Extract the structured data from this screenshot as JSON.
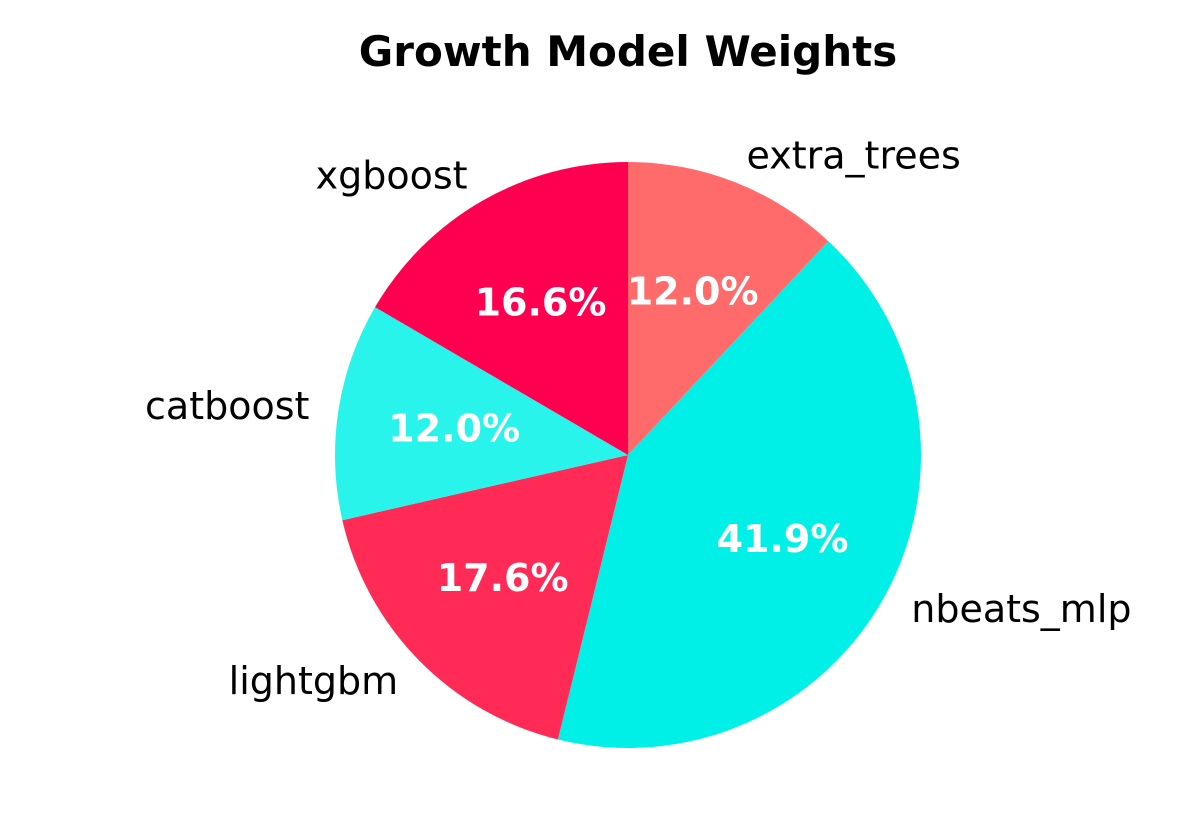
{
  "chart_data": {
    "type": "pie",
    "title": "Growth Model Weights",
    "start_angle_deg": 90,
    "direction": "clockwise",
    "slices": [
      {
        "label": "extra_trees",
        "value": 12.0,
        "pct_label": "12.0%",
        "color": "#FF6B6B"
      },
      {
        "label": "nbeats_mlp",
        "value": 41.9,
        "pct_label": "41.9%",
        "color": "#00F0E8"
      },
      {
        "label": "lightgbm",
        "value": 17.6,
        "pct_label": "17.6%",
        "color": "#FF2A55"
      },
      {
        "label": "catboost",
        "value": 12.0,
        "pct_label": "12.0%",
        "color": "#29F4EC"
      },
      {
        "label": "xgboost",
        "value": 16.6,
        "pct_label": "16.6%",
        "color": "#FF0050"
      }
    ]
  }
}
